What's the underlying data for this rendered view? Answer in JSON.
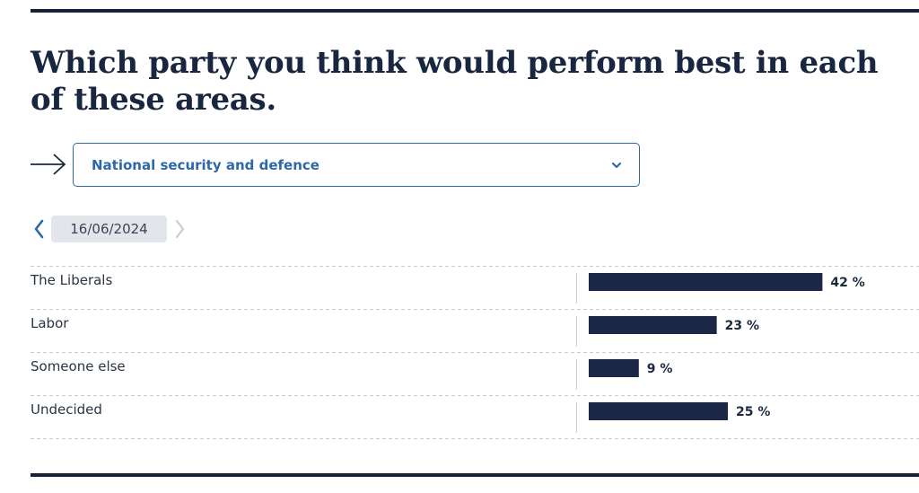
{
  "title": "Which party you think would perform best in each of these areas.",
  "dropdown": {
    "selected": "National security and defence"
  },
  "date_nav": {
    "date": "16/06/2024"
  },
  "colors": {
    "bar": "#1c2645",
    "accent": "#2d68a8",
    "chip": "#e2e5ea"
  },
  "icons": [
    "arrow-right-icon",
    "chevron-down-icon",
    "chevron-left-icon",
    "chevron-right-icon"
  ],
  "chart_data": {
    "type": "bar",
    "orientation": "horizontal",
    "categories": [
      "The Liberals",
      "Labor",
      "Someone else",
      "Undecided"
    ],
    "values": [
      42,
      23,
      9,
      25
    ],
    "value_suffix": " %",
    "xlim": [
      0,
      100
    ],
    "grid": false
  }
}
